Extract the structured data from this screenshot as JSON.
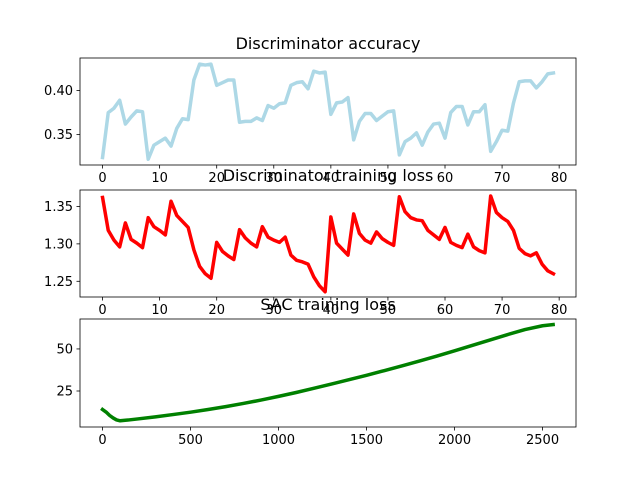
{
  "chart_data": [
    {
      "type": "line",
      "title": "Discriminator accuracy",
      "xlabel": "",
      "ylabel": "",
      "xlim": [
        -3.95,
        82.95
      ],
      "ylim": [
        0.3155,
        0.437
      ],
      "xticks": [
        0,
        10,
        20,
        30,
        40,
        50,
        60,
        70,
        80
      ],
      "yticks": [
        0.35,
        0.4
      ],
      "ytick_labels": [
        "0.35",
        "0.40"
      ],
      "grid": false,
      "color": "#add8e6",
      "series": [
        {
          "x": [
            0,
            1,
            2,
            3,
            4,
            5,
            6,
            7,
            8,
            9,
            10,
            11,
            12,
            13,
            14,
            15,
            16,
            17,
            18,
            19,
            20,
            21,
            22,
            23,
            24,
            25,
            26,
            27,
            28,
            29,
            30,
            31,
            32,
            33,
            34,
            35,
            36,
            37,
            38,
            39,
            40,
            41,
            42,
            43,
            44,
            45,
            46,
            47,
            48,
            49,
            50,
            51,
            52,
            53,
            54,
            55,
            56,
            57,
            58,
            59,
            60,
            61,
            62,
            63,
            64,
            65,
            66,
            67,
            68,
            69,
            70,
            71,
            72,
            73,
            74,
            75,
            76,
            77,
            78,
            79
          ],
          "values": [
            0.324,
            0.375,
            0.38,
            0.389,
            0.362,
            0.37,
            0.377,
            0.376,
            0.322,
            0.338,
            0.342,
            0.346,
            0.337,
            0.357,
            0.368,
            0.367,
            0.412,
            0.43,
            0.429,
            0.43,
            0.406,
            0.409,
            0.412,
            0.412,
            0.364,
            0.365,
            0.365,
            0.369,
            0.366,
            0.383,
            0.38,
            0.385,
            0.386,
            0.406,
            0.409,
            0.41,
            0.402,
            0.422,
            0.42,
            0.421,
            0.373,
            0.386,
            0.387,
            0.392,
            0.344,
            0.365,
            0.374,
            0.374,
            0.366,
            0.371,
            0.376,
            0.377,
            0.327,
            0.342,
            0.346,
            0.352,
            0.338,
            0.353,
            0.362,
            0.363,
            0.346,
            0.375,
            0.382,
            0.382,
            0.361,
            0.376,
            0.376,
            0.384,
            0.331,
            0.342,
            0.355,
            0.354,
            0.386,
            0.41,
            0.411,
            0.411,
            0.403,
            0.41,
            0.419,
            0.42
          ]
        }
      ]
    },
    {
      "type": "line",
      "title": "Discriminator training loss",
      "xlabel": "",
      "ylabel": "",
      "xlim": [
        -3.95,
        82.95
      ],
      "ylim": [
        1.229,
        1.372
      ],
      "xticks": [
        0,
        10,
        20,
        30,
        40,
        50,
        60,
        70,
        80
      ],
      "yticks": [
        1.25,
        1.3,
        1.35
      ],
      "ytick_labels": [
        "1.25",
        "1.30",
        "1.35"
      ],
      "grid": false,
      "color": "#ff0000",
      "series": [
        {
          "x": [
            0,
            1,
            2,
            3,
            4,
            5,
            6,
            7,
            8,
            9,
            10,
            11,
            12,
            13,
            14,
            15,
            16,
            17,
            18,
            19,
            20,
            21,
            22,
            23,
            24,
            25,
            26,
            27,
            28,
            29,
            30,
            31,
            32,
            33,
            34,
            35,
            36,
            37,
            38,
            39,
            40,
            41,
            42,
            43,
            44,
            45,
            46,
            47,
            48,
            49,
            50,
            51,
            52,
            53,
            54,
            55,
            56,
            57,
            58,
            59,
            60,
            61,
            62,
            63,
            64,
            65,
            66,
            67,
            68,
            69,
            70,
            71,
            72,
            73,
            74,
            75,
            76,
            77,
            78,
            79
          ],
          "values": [
            1.362,
            1.318,
            1.305,
            1.296,
            1.328,
            1.306,
            1.301,
            1.295,
            1.335,
            1.323,
            1.318,
            1.312,
            1.357,
            1.338,
            1.33,
            1.322,
            1.292,
            1.27,
            1.26,
            1.254,
            1.302,
            1.29,
            1.284,
            1.279,
            1.319,
            1.308,
            1.301,
            1.296,
            1.323,
            1.309,
            1.305,
            1.302,
            1.309,
            1.285,
            1.278,
            1.276,
            1.273,
            1.256,
            1.244,
            1.236,
            1.336,
            1.301,
            1.293,
            1.285,
            1.34,
            1.314,
            1.305,
            1.301,
            1.316,
            1.307,
            1.302,
            1.298,
            1.363,
            1.343,
            1.335,
            1.332,
            1.331,
            1.318,
            1.312,
            1.306,
            1.322,
            1.302,
            1.298,
            1.295,
            1.313,
            1.296,
            1.291,
            1.288,
            1.364,
            1.342,
            1.335,
            1.33,
            1.318,
            1.294,
            1.287,
            1.284,
            1.288,
            1.273,
            1.264,
            1.26
          ]
        }
      ]
    },
    {
      "type": "line",
      "title": "SAC training loss",
      "xlabel": "",
      "ylabel": "",
      "xlim": [
        -128,
        2690
      ],
      "ylim": [
        3.6,
        67.8
      ],
      "xticks": [
        0,
        500,
        1000,
        1500,
        2000,
        2500
      ],
      "yticks": [
        25,
        50
      ],
      "ytick_labels": [
        "25",
        "50"
      ],
      "grid": false,
      "color": "#008000",
      "series": [
        {
          "x": [
            0,
            20,
            40,
            60,
            80,
            100,
            150,
            200,
            300,
            400,
            500,
            600,
            700,
            800,
            900,
            1000,
            1100,
            1200,
            1300,
            1400,
            1500,
            1600,
            1700,
            1800,
            1900,
            2000,
            2100,
            2200,
            2300,
            2400,
            2500,
            2560
          ],
          "values": [
            14.0,
            12.5,
            10.5,
            9.0,
            7.8,
            7.3,
            7.8,
            8.4,
            9.6,
            11.0,
            12.4,
            14.0,
            15.7,
            17.6,
            19.6,
            21.8,
            24.1,
            26.6,
            29.1,
            31.7,
            34.3,
            37.1,
            39.9,
            42.8,
            45.8,
            48.9,
            52.1,
            55.3,
            58.5,
            61.5,
            63.8,
            64.5
          ]
        }
      ]
    }
  ]
}
